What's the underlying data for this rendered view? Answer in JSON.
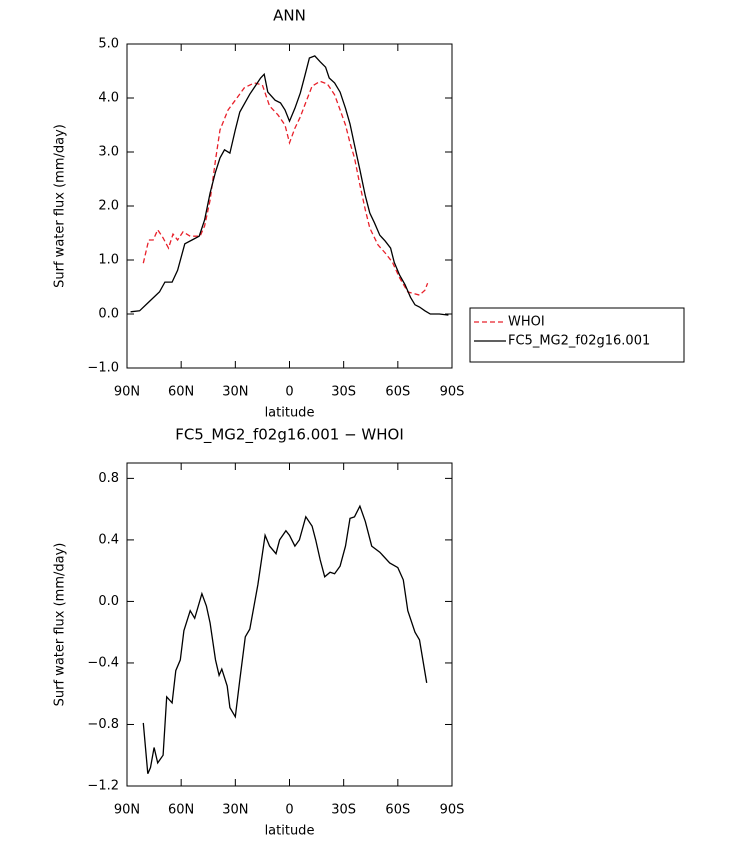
{
  "chart_data": [
    {
      "type": "line",
      "title": "ANN",
      "x_label": "latitude",
      "y_label": "Surf water flux (mm/day)",
      "xlim": [
        90,
        -90
      ],
      "xticks": [
        {
          "value": 90,
          "label": "90N"
        },
        {
          "value": 60,
          "label": "60N"
        },
        {
          "value": 30,
          "label": "30N"
        },
        0,
        {
          "value": -30,
          "label": "30S"
        },
        {
          "value": -60,
          "label": "60S"
        },
        {
          "value": -90,
          "label": "90S"
        }
      ],
      "ylim": [
        -1,
        5
      ],
      "yticks": [
        {
          "value": -1,
          "label": "−1.0"
        },
        {
          "value": 0,
          "label": "0.0"
        },
        {
          "value": 1,
          "label": "1.0"
        },
        {
          "value": 2,
          "label": "2.0"
        },
        {
          "value": 3,
          "label": "3.0"
        },
        {
          "value": 4,
          "label": "4.0"
        },
        {
          "value": 5,
          "label": "5.0"
        }
      ],
      "grid": false,
      "legend": "right",
      "series": [
        {
          "name": "WHOI",
          "color": "#e8202a",
          "line_style": "dashed",
          "x": [
            81,
            78,
            75.5,
            73,
            70,
            67,
            64.5,
            62,
            59,
            55,
            49.5,
            47,
            44,
            41,
            38.5,
            34,
            30,
            25,
            19.5,
            15,
            11,
            6.5,
            2.5,
            0,
            -3,
            -6,
            -8.5,
            -12.5,
            -17,
            -21,
            -25,
            -28,
            -31,
            -33.5,
            -36,
            -39,
            -42,
            -44.5,
            -49,
            -53,
            -57,
            -61,
            -65.5,
            -72,
            -75,
            -76.5
          ],
          "values": [
            0.94,
            1.37,
            1.37,
            1.56,
            1.41,
            1.22,
            1.48,
            1.37,
            1.52,
            1.44,
            1.44,
            1.63,
            2.11,
            2.85,
            3.41,
            3.78,
            3.96,
            4.19,
            4.28,
            4.24,
            3.85,
            3.69,
            3.5,
            3.17,
            3.44,
            3.65,
            3.87,
            4.22,
            4.31,
            4.26,
            4.06,
            3.78,
            3.5,
            3.17,
            2.89,
            2.39,
            1.93,
            1.59,
            1.28,
            1.13,
            0.96,
            0.67,
            0.41,
            0.35,
            0.44,
            0.57
          ]
        },
        {
          "name": "FC5_MG2_f02g16.001",
          "color": "#000000",
          "line_style": "solid",
          "x": [
            88,
            83,
            78,
            72,
            69,
            65,
            62,
            58,
            54,
            50,
            47,
            44,
            41,
            38.5,
            36,
            33,
            30,
            27.5,
            22,
            16,
            14,
            12,
            8,
            5,
            2.5,
            0,
            -3,
            -6,
            -8.5,
            -11,
            -14,
            -17,
            -20,
            -22,
            -25,
            -28,
            -31,
            -33.5,
            -36,
            -39,
            -42,
            -44.5,
            -47,
            -50,
            -53,
            -56,
            -58,
            -61,
            -64,
            -67,
            -69.5,
            -72,
            -75,
            -78,
            -83,
            -88
          ],
          "values": [
            0.04,
            0.06,
            0.22,
            0.41,
            0.59,
            0.59,
            0.81,
            1.3,
            1.37,
            1.44,
            1.74,
            2.24,
            2.63,
            2.89,
            3.04,
            2.98,
            3.41,
            3.74,
            4.07,
            4.37,
            4.44,
            4.11,
            3.96,
            3.91,
            3.78,
            3.57,
            3.81,
            4.09,
            4.41,
            4.74,
            4.78,
            4.67,
            4.57,
            4.37,
            4.28,
            4.11,
            3.81,
            3.52,
            3.13,
            2.67,
            2.19,
            1.87,
            1.69,
            1.46,
            1.35,
            1.22,
            0.96,
            0.72,
            0.54,
            0.31,
            0.17,
            0.13,
            0.06,
            0.0,
            0.0,
            -0.02
          ]
        }
      ]
    },
    {
      "type": "line",
      "title": "FC5_MG2_f02g16.001 − WHOI",
      "x_label": "latitude",
      "y_label": "Surf water flux (mm/day)",
      "xlim": [
        90,
        -90
      ],
      "xticks": [
        {
          "value": 90,
          "label": "90N"
        },
        {
          "value": 60,
          "label": "60N"
        },
        {
          "value": 30,
          "label": "30N"
        },
        0,
        {
          "value": -30,
          "label": "30S"
        },
        {
          "value": -60,
          "label": "60S"
        },
        {
          "value": -90,
          "label": "90S"
        }
      ],
      "ylim": [
        -1.2,
        0.9
      ],
      "yticks": [
        {
          "value": -1.2,
          "label": "−1.2"
        },
        {
          "value": -0.8,
          "label": "−0.8"
        },
        {
          "value": -0.4,
          "label": "−0.4"
        },
        {
          "value": 0,
          "label": "0.0"
        },
        0.4,
        0.8
      ],
      "grid": false,
      "series": [
        {
          "color": "#000000",
          "line_style": "solid",
          "x": [
            81,
            78.5,
            77,
            75,
            73,
            70,
            68,
            65,
            63,
            60.5,
            58.5,
            55,
            52.5,
            48.5,
            46,
            44,
            41,
            39,
            37.5,
            34.5,
            33,
            30,
            27.5,
            24.5,
            22,
            17.5,
            13.5,
            11,
            7.5,
            5.5,
            2,
            0,
            -3,
            -5.5,
            -9,
            -12.5,
            -14.5,
            -17,
            -19.5,
            -22.5,
            -25,
            -28,
            -31,
            -33.5,
            -36,
            -39,
            -42,
            -45.5,
            -50,
            -55.5,
            -60,
            -63,
            -65.5,
            -69.5,
            -72,
            -76
          ],
          "values": [
            -0.79,
            -1.12,
            -1.08,
            -0.95,
            -1.05,
            -1.0,
            -0.62,
            -0.66,
            -0.45,
            -0.38,
            -0.19,
            -0.06,
            -0.11,
            0.05,
            -0.03,
            -0.14,
            -0.38,
            -0.48,
            -0.44,
            -0.55,
            -0.69,
            -0.75,
            -0.51,
            -0.23,
            -0.18,
            0.11,
            0.43,
            0.36,
            0.31,
            0.4,
            0.46,
            0.43,
            0.36,
            0.4,
            0.55,
            0.49,
            0.4,
            0.27,
            0.16,
            0.19,
            0.18,
            0.23,
            0.36,
            0.54,
            0.55,
            0.62,
            0.52,
            0.36,
            0.32,
            0.25,
            0.22,
            0.14,
            -0.06,
            -0.2,
            -0.25,
            -0.53
          ]
        }
      ]
    }
  ]
}
